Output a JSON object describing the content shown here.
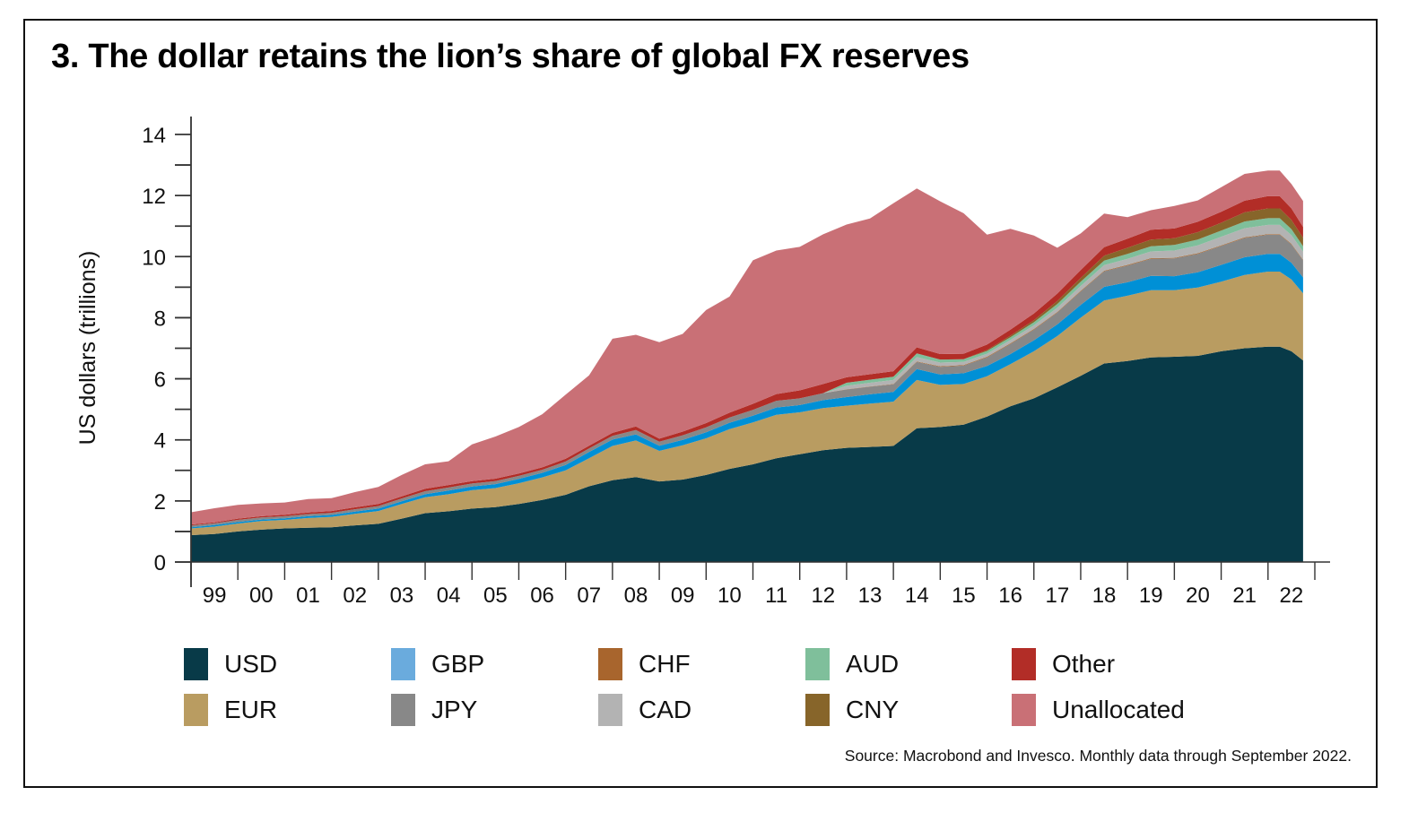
{
  "chart_data": {
    "type": "area",
    "stacked": true,
    "title": "3. The dollar retains the lion’s share of global FX reserves",
    "xlabel": "",
    "ylabel": "US dollars (trillions)",
    "ylim": [
      0,
      14
    ],
    "yticks": [
      0,
      2,
      4,
      6,
      8,
      10,
      12,
      14
    ],
    "xlim": [
      1999,
      2023
    ],
    "xtick_labels": [
      "99",
      "00",
      "01",
      "02",
      "03",
      "04",
      "05",
      "06",
      "07",
      "08",
      "09",
      "10",
      "11",
      "12",
      "13",
      "14",
      "15",
      "16",
      "17",
      "18",
      "19",
      "20",
      "21",
      "22"
    ],
    "grid": false,
    "legend_position": "bottom",
    "source": "Source: Macrobond and Invesco. Monthly data through September 2022.",
    "x": [
      1999.0,
      1999.5,
      2000.0,
      2000.5,
      2001.0,
      2001.5,
      2002.0,
      2002.5,
      2003.0,
      2003.5,
      2004.0,
      2004.5,
      2005.0,
      2005.5,
      2006.0,
      2006.5,
      2007.0,
      2007.5,
      2008.0,
      2008.5,
      2009.0,
      2009.5,
      2010.0,
      2010.5,
      2011.0,
      2011.5,
      2012.0,
      2012.5,
      2013.0,
      2013.5,
      2014.0,
      2014.5,
      2015.0,
      2015.5,
      2016.0,
      2016.5,
      2017.0,
      2017.5,
      2018.0,
      2018.5,
      2019.0,
      2019.5,
      2020.0,
      2020.5,
      2021.0,
      2021.5,
      2022.0,
      2022.25,
      2022.5,
      2022.75
    ],
    "series": [
      {
        "name": "USD",
        "color": "#083a48",
        "values": [
          0.88,
          0.92,
          1.0,
          1.06,
          1.1,
          1.12,
          1.14,
          1.2,
          1.25,
          1.42,
          1.6,
          1.66,
          1.75,
          1.8,
          1.9,
          2.03,
          2.2,
          2.48,
          2.68,
          2.78,
          2.64,
          2.7,
          2.85,
          3.05,
          3.2,
          3.4,
          3.53,
          3.66,
          3.74,
          3.77,
          3.8,
          4.38,
          4.42,
          4.5,
          4.76,
          5.1,
          5.36,
          5.72,
          6.1,
          6.5,
          6.58,
          6.7,
          6.72,
          6.75,
          6.9,
          7.0,
          7.05,
          7.05,
          6.9,
          6.6
        ]
      },
      {
        "name": "EUR",
        "color": "#b99c61",
        "values": [
          0.22,
          0.24,
          0.26,
          0.28,
          0.28,
          0.32,
          0.34,
          0.38,
          0.42,
          0.48,
          0.52,
          0.56,
          0.6,
          0.62,
          0.68,
          0.74,
          0.8,
          0.92,
          1.12,
          1.2,
          1.0,
          1.12,
          1.2,
          1.3,
          1.37,
          1.42,
          1.37,
          1.38,
          1.38,
          1.42,
          1.45,
          1.58,
          1.38,
          1.33,
          1.32,
          1.38,
          1.54,
          1.68,
          1.9,
          2.06,
          2.14,
          2.2,
          2.18,
          2.24,
          2.28,
          2.4,
          2.46,
          2.46,
          2.35,
          2.2
        ]
      },
      {
        "name": "GBP",
        "color": "#0090d6",
        "values": [
          0.04,
          0.05,
          0.05,
          0.05,
          0.05,
          0.06,
          0.06,
          0.07,
          0.08,
          0.09,
          0.1,
          0.12,
          0.12,
          0.13,
          0.14,
          0.15,
          0.18,
          0.2,
          0.21,
          0.2,
          0.17,
          0.18,
          0.2,
          0.21,
          0.22,
          0.24,
          0.24,
          0.26,
          0.28,
          0.3,
          0.32,
          0.36,
          0.34,
          0.35,
          0.34,
          0.33,
          0.36,
          0.38,
          0.42,
          0.45,
          0.44,
          0.47,
          0.46,
          0.5,
          0.55,
          0.58,
          0.58,
          0.58,
          0.55,
          0.52
        ]
      },
      {
        "name": "JPY",
        "color": "#888888",
        "values": [
          0.06,
          0.06,
          0.07,
          0.07,
          0.07,
          0.07,
          0.07,
          0.08,
          0.08,
          0.09,
          0.1,
          0.1,
          0.1,
          0.1,
          0.1,
          0.1,
          0.11,
          0.12,
          0.12,
          0.14,
          0.13,
          0.15,
          0.16,
          0.17,
          0.19,
          0.22,
          0.22,
          0.23,
          0.25,
          0.25,
          0.25,
          0.23,
          0.25,
          0.25,
          0.28,
          0.33,
          0.35,
          0.39,
          0.44,
          0.51,
          0.55,
          0.56,
          0.58,
          0.6,
          0.62,
          0.63,
          0.63,
          0.63,
          0.6,
          0.56
        ]
      },
      {
        "name": "CHF",
        "color": "#a8652d",
        "values": [
          0.0,
          0.0,
          0.0,
          0.0,
          0.0,
          0.0,
          0.0,
          0.0,
          0.0,
          0.0,
          0.0,
          0.0,
          0.0,
          0.0,
          0.0,
          0.0,
          0.0,
          0.0,
          0.0,
          0.0,
          0.0,
          0.0,
          0.0,
          0.0,
          0.0,
          0.0,
          0.0,
          0.0,
          0.01,
          0.01,
          0.01,
          0.02,
          0.02,
          0.02,
          0.02,
          0.02,
          0.02,
          0.02,
          0.02,
          0.02,
          0.02,
          0.02,
          0.02,
          0.02,
          0.02,
          0.02,
          0.02,
          0.02,
          0.02,
          0.02
        ]
      },
      {
        "name": "CAD",
        "color": "#b3b3b3",
        "values": [
          0.0,
          0.0,
          0.0,
          0.0,
          0.0,
          0.0,
          0.0,
          0.0,
          0.0,
          0.0,
          0.0,
          0.0,
          0.0,
          0.0,
          0.0,
          0.0,
          0.0,
          0.0,
          0.0,
          0.0,
          0.0,
          0.0,
          0.0,
          0.0,
          0.0,
          0.0,
          0.0,
          0.0,
          0.11,
          0.12,
          0.13,
          0.14,
          0.12,
          0.1,
          0.1,
          0.11,
          0.12,
          0.14,
          0.16,
          0.18,
          0.2,
          0.22,
          0.24,
          0.26,
          0.28,
          0.3,
          0.3,
          0.3,
          0.28,
          0.26
        ]
      },
      {
        "name": "AUD",
        "color": "#7fbf9b",
        "values": [
          0.0,
          0.0,
          0.0,
          0.0,
          0.0,
          0.0,
          0.0,
          0.0,
          0.0,
          0.0,
          0.0,
          0.0,
          0.0,
          0.0,
          0.0,
          0.0,
          0.0,
          0.0,
          0.0,
          0.0,
          0.0,
          0.0,
          0.0,
          0.0,
          0.0,
          0.0,
          0.0,
          0.0,
          0.1,
          0.1,
          0.11,
          0.12,
          0.1,
          0.09,
          0.09,
          0.09,
          0.1,
          0.12,
          0.14,
          0.15,
          0.16,
          0.17,
          0.18,
          0.19,
          0.2,
          0.22,
          0.22,
          0.22,
          0.2,
          0.18
        ]
      },
      {
        "name": "CNY",
        "color": "#87652a",
        "values": [
          0.0,
          0.0,
          0.0,
          0.0,
          0.0,
          0.0,
          0.0,
          0.0,
          0.0,
          0.0,
          0.0,
          0.0,
          0.0,
          0.0,
          0.0,
          0.0,
          0.0,
          0.0,
          0.0,
          0.0,
          0.0,
          0.0,
          0.0,
          0.0,
          0.0,
          0.0,
          0.0,
          0.0,
          0.0,
          0.0,
          0.0,
          0.0,
          0.0,
          0.0,
          0.03,
          0.05,
          0.07,
          0.1,
          0.12,
          0.16,
          0.2,
          0.22,
          0.22,
          0.24,
          0.26,
          0.3,
          0.32,
          0.32,
          0.3,
          0.28
        ]
      },
      {
        "name": "Other",
        "color": "#b22d27",
        "values": [
          0.03,
          0.03,
          0.04,
          0.04,
          0.05,
          0.05,
          0.06,
          0.06,
          0.07,
          0.07,
          0.08,
          0.08,
          0.08,
          0.08,
          0.08,
          0.08,
          0.09,
          0.09,
          0.1,
          0.12,
          0.1,
          0.12,
          0.14,
          0.16,
          0.2,
          0.22,
          0.26,
          0.3,
          0.18,
          0.18,
          0.18,
          0.2,
          0.18,
          0.18,
          0.18,
          0.2,
          0.22,
          0.24,
          0.26,
          0.28,
          0.3,
          0.32,
          0.32,
          0.34,
          0.36,
          0.38,
          0.4,
          0.4,
          0.38,
          0.35
        ]
      },
      {
        "name": "Unallocated",
        "color": "#c97076",
        "values": [
          0.4,
          0.46,
          0.45,
          0.42,
          0.4,
          0.44,
          0.42,
          0.5,
          0.56,
          0.7,
          0.8,
          0.78,
          1.2,
          1.38,
          1.52,
          1.74,
          2.1,
          2.3,
          3.08,
          3.0,
          3.16,
          3.2,
          3.7,
          3.8,
          4.7,
          4.7,
          4.7,
          4.9,
          5.0,
          5.1,
          5.5,
          5.2,
          5.0,
          4.6,
          3.6,
          3.3,
          2.55,
          1.5,
          1.2,
          1.1,
          0.7,
          0.64,
          0.74,
          0.7,
          0.8,
          0.88,
          0.84,
          0.84,
          0.8,
          0.85
        ]
      }
    ]
  }
}
